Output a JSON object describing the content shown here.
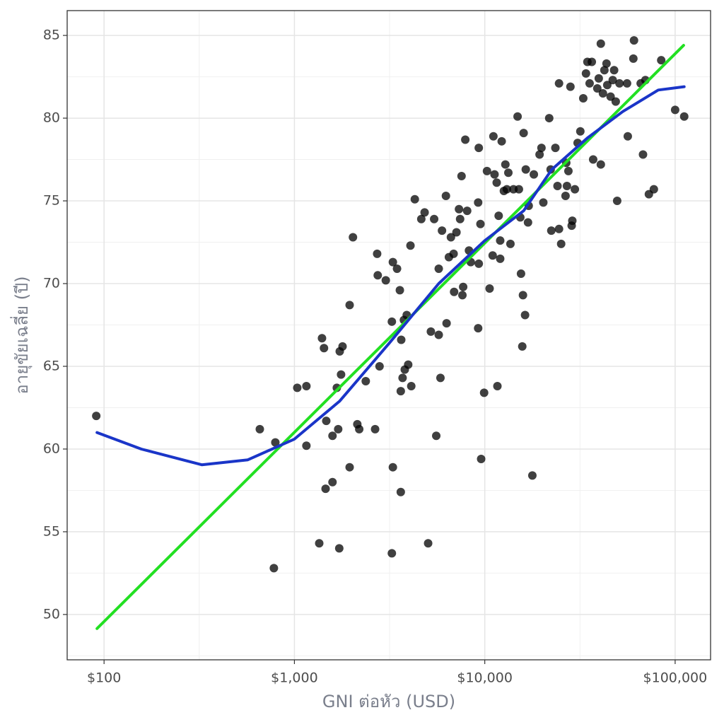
{
  "chart_data": {
    "type": "scatter",
    "x_label": "GNI ต่อหัว (USD)",
    "y_label": "อายุขัยเฉลี่ย (ปี)",
    "x_scale": "log",
    "grid": true,
    "point_color": "#000000",
    "xlim": [
      64,
      153500
    ],
    "ylim": [
      47.26,
      86.5
    ],
    "xticks": [
      {
        "value": 100,
        "label": "$100"
      },
      {
        "value": 1000,
        "label": "$1,000"
      },
      {
        "value": 10000,
        "label": "$10,000"
      },
      {
        "value": 100000,
        "label": "$100,000"
      }
    ],
    "yticks": [
      50,
      55,
      60,
      65,
      70,
      75,
      80,
      85
    ],
    "x": [
      91,
      658,
      794,
      780,
      1035,
      1156,
      1156,
      1396,
      1430,
      1470,
      1458,
      1350,
      1585,
      1585,
      1670,
      1698,
      1730,
      1790,
      1758,
      1720,
      1950,
      1950,
      2030,
      2140,
      2190,
      2370,
      2654,
      2720,
      2740,
      2800,
      3020,
      3290,
      3250,
      3290,
      3250,
      3460,
      3580,
      3640,
      3700,
      3620,
      3620,
      3760,
      3890,
      3960,
      3800,
      4070,
      4110,
      4290,
      4640,
      4830,
      5040,
      5210,
      5420,
      5560,
      5730,
      5850,
      5960,
      5730,
      6250,
      6300,
      6480,
      6640,
      6860,
      6900,
      7100,
      7320,
      7550,
      7420,
      7630,
      7700,
      7900,
      8080,
      8260,
      8440,
      9230,
      9300,
      9300,
      9230,
      9490,
      9570,
      9920,
      10270,
      10600,
      11000,
      11100,
      11250,
      11550,
      11650,
      11830,
      12050,
      12050,
      12270,
      12600,
      12830,
      13060,
      13300,
      13640,
      14150,
      14870,
      15110,
      15370,
      15500,
      15740,
      15870,
      16000,
      16280,
      16420,
      16870,
      17010,
      17780,
      18100,
      19400,
      19850,
      20300,
      21800,
      22180,
      22360,
      23490,
      24100,
      24550,
      24550,
      25190,
      26560,
      26790,
      27020,
      27500,
      28180,
      28610,
      28830,
      29730,
      30740,
      31770,
      32910,
      34010,
      34600,
      35540,
      36500,
      37100,
      39000,
      39700,
      40700,
      40700,
      41750,
      42500,
      43600,
      44000,
      45800,
      47000,
      47800,
      48750,
      49600,
      51000,
      55900,
      56400,
      60330,
      60800,
      65900,
      67800,
      69800,
      72800,
      77300,
      84500,
      100000,
      111600
    ],
    "y": [
      62.0,
      61.2,
      60.4,
      52.8,
      63.7,
      63.8,
      60.2,
      66.7,
      66.1,
      61.7,
      57.6,
      54.3,
      58.0,
      60.8,
      63.7,
      61.2,
      65.9,
      66.2,
      64.5,
      54.0,
      68.7,
      58.9,
      72.8,
      61.5,
      61.2,
      64.1,
      61.2,
      71.8,
      70.5,
      65.0,
      70.2,
      71.3,
      67.7,
      58.9,
      53.7,
      70.9,
      69.6,
      66.6,
      64.3,
      63.5,
      57.4,
      67.8,
      68.1,
      65.1,
      64.8,
      72.3,
      63.8,
      75.1,
      73.9,
      74.3,
      54.3,
      67.1,
      73.9,
      60.8,
      66.9,
      64.3,
      73.2,
      70.9,
      75.3,
      67.6,
      71.6,
      72.8,
      71.8,
      69.5,
      73.1,
      74.5,
      76.5,
      73.9,
      69.3,
      69.8,
      78.7,
      74.4,
      72.0,
      71.3,
      74.9,
      78.2,
      71.2,
      67.3,
      73.6,
      59.4,
      63.4,
      76.8,
      69.7,
      71.7,
      78.9,
      76.6,
      76.1,
      63.8,
      74.1,
      72.6,
      71.5,
      78.6,
      75.6,
      77.2,
      75.7,
      76.7,
      72.4,
      75.7,
      80.1,
      75.7,
      74.0,
      70.6,
      66.2,
      69.3,
      79.1,
      68.1,
      76.9,
      73.7,
      74.7,
      58.4,
      76.6,
      77.8,
      78.2,
      74.9,
      80.0,
      76.9,
      73.2,
      78.2,
      75.9,
      82.1,
      73.3,
      72.4,
      75.3,
      77.3,
      75.9,
      76.8,
      81.9,
      73.5,
      73.8,
      75.7,
      78.5,
      79.2,
      81.2,
      82.7,
      83.4,
      82.1,
      83.4,
      77.5,
      81.8,
      82.4,
      84.5,
      77.2,
      81.5,
      82.9,
      83.3,
      82.0,
      81.3,
      82.3,
      82.9,
      81.0,
      75.0,
      82.1,
      82.1,
      78.9,
      83.6,
      84.7,
      82.1,
      77.8,
      82.3,
      75.4,
      75.7,
      83.5,
      80.5,
      80.1
    ],
    "fits": [
      {
        "color": "#22e022",
        "x": [
          91.8,
          110800
        ],
        "y": [
          49.15,
          84.4
        ]
      },
      {
        "color": "#1a35c8",
        "x": [
          91.8,
          157,
          326,
          569,
          1000,
          1730,
          3150,
          5730,
          10000,
          16000,
          22500,
          34600,
          53100,
          81500,
          111600
        ],
        "y": [
          61.0,
          60.0,
          59.05,
          59.35,
          60.6,
          62.9,
          66.4,
          70.0,
          72.6,
          74.4,
          76.9,
          78.8,
          80.4,
          81.7,
          81.9
        ]
      }
    ]
  }
}
